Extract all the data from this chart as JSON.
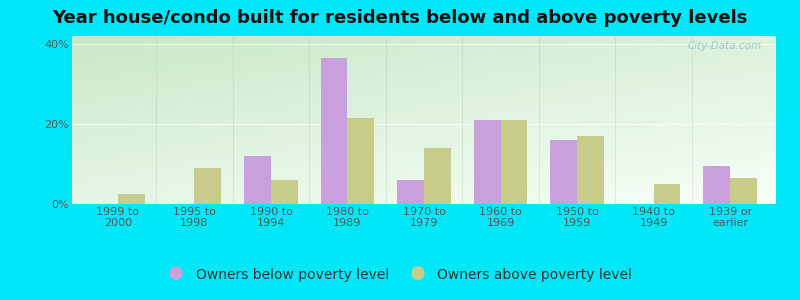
{
  "title": "Year house/condo built for residents below and above poverty levels",
  "categories": [
    "1999 to\n2000",
    "1995 to\n1998",
    "1990 to\n1994",
    "1980 to\n1989",
    "1970 to\n1979",
    "1960 to\n1969",
    "1950 to\n1959",
    "1940 to\n1949",
    "1939 or\nearlier"
  ],
  "below_poverty": [
    0.0,
    0.0,
    12.0,
    36.5,
    6.0,
    21.0,
    16.0,
    0.0,
    9.5
  ],
  "above_poverty": [
    2.5,
    9.0,
    6.0,
    21.5,
    14.0,
    21.0,
    17.0,
    5.0,
    6.5
  ],
  "below_color": "#c9a0dc",
  "above_color": "#c8cc8a",
  "ylim": [
    0,
    42
  ],
  "yticks": [
    0,
    20,
    40
  ],
  "yticklabels": [
    "0%",
    "20%",
    "40%"
  ],
  "bg_top_left": "#c8e8c8",
  "bg_bottom_right": "#f0f8e8",
  "outer_bg": "#00e8f8",
  "bar_width": 0.35,
  "title_fontsize": 13,
  "legend_fontsize": 10,
  "tick_fontsize": 8,
  "watermark": "City-Data.com",
  "legend_below": "Owners below poverty level",
  "legend_above": "Owners above poverty level"
}
